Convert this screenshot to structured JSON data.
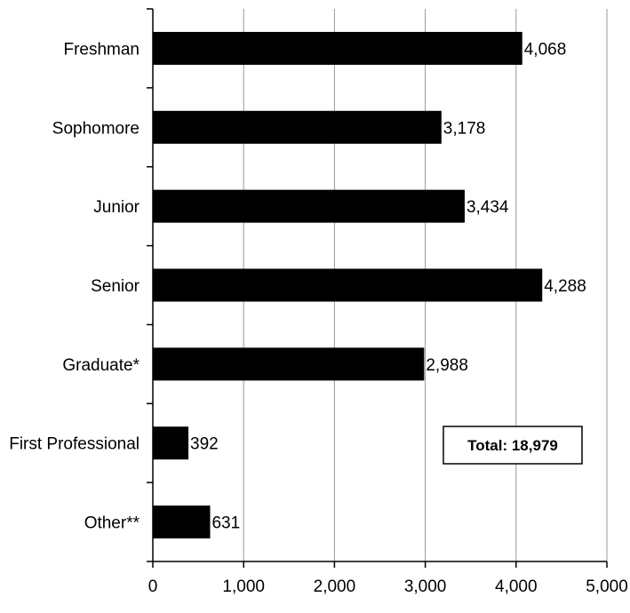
{
  "chart_data": {
    "type": "bar",
    "orientation": "horizontal",
    "categories": [
      "Freshman",
      "Sophomore",
      "Junior",
      "Senior",
      "Graduate*",
      "First Professional",
      "Other**"
    ],
    "values": [
      4068,
      3178,
      3434,
      4288,
      2988,
      392,
      631
    ],
    "value_labels": [
      "4,068",
      "3,178",
      "3,434",
      "4,288",
      "2,988",
      "392",
      "631"
    ],
    "xlim": [
      0,
      5000
    ],
    "x_ticks": [
      0,
      1000,
      2000,
      3000,
      4000,
      5000
    ],
    "x_tick_labels": [
      "0",
      "1,000",
      "2,000",
      "3,000",
      "4,000",
      "5,000"
    ],
    "grid": "vertical",
    "bar_color": "#000000",
    "grid_color": "#999999",
    "annotation": "Total: 18,979"
  }
}
